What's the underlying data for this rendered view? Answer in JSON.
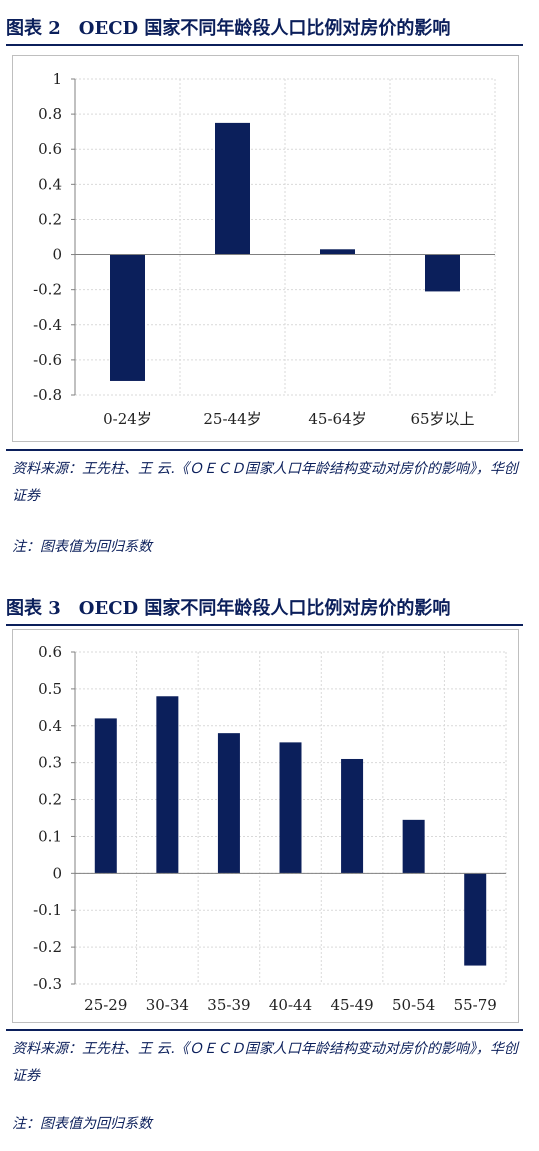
{
  "figures": [
    {
      "title": "图表 2　OECD 国家不同年龄段人口比例对房价的影响",
      "source": "资料来源：王先柱、王 云.《ＯＥＣＤ国家人口年龄结构变动对房价的影响》，华创证券",
      "note": "注：图表值为回归系数"
    },
    {
      "title": "图表 3　OECD 国家不同年龄段人口比例对房价的影响",
      "source": "资料来源：王先柱、王 云.《ＯＥＣＤ国家人口年龄结构变动对房价的影响》，华创证券",
      "note": "注：图表值为回归系数"
    }
  ],
  "colors": {
    "bar": "#0b1f5b",
    "title": "#0b1f5b",
    "grid": "#d9d9d9"
  },
  "chart_data": [
    {
      "type": "bar",
      "title": "",
      "xlabel": "",
      "ylabel": "",
      "categories": [
        "0-24岁",
        "25-44岁",
        "45-64岁",
        "65岁以上"
      ],
      "values": [
        -0.72,
        0.75,
        0.03,
        -0.21
      ],
      "ylim": [
        -0.8,
        1
      ],
      "yticks": [
        "1",
        "0.8",
        "0.6",
        "0.4",
        "0.2",
        "0",
        "-0.2",
        "-0.4",
        "-0.6",
        "-0.8"
      ],
      "grid": true,
      "legend": "none"
    },
    {
      "type": "bar",
      "title": "",
      "xlabel": "",
      "ylabel": "",
      "categories": [
        "25-29",
        "30-34",
        "35-39",
        "40-44",
        "45-49",
        "50-54",
        "55-79"
      ],
      "values": [
        0.42,
        0.48,
        0.38,
        0.355,
        0.31,
        0.145,
        -0.25
      ],
      "ylim": [
        -0.3,
        0.6
      ],
      "yticks": [
        "0.6",
        "0.5",
        "0.4",
        "0.3",
        "0.2",
        "0.1",
        "0",
        "-0.1",
        "-0.2",
        "-0.3"
      ],
      "grid": true,
      "legend": "none"
    }
  ]
}
